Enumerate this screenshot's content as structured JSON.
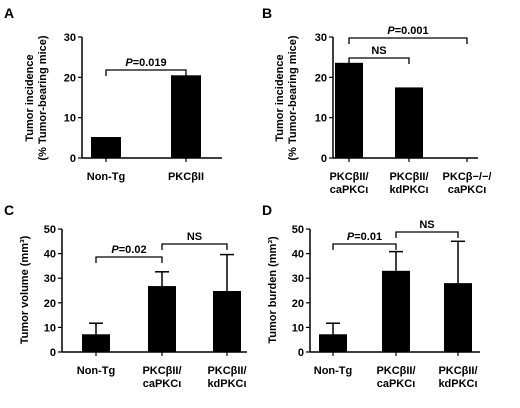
{
  "chart_data": [
    {
      "type": "bar",
      "panel": "A",
      "ylabel": [
        "Tumor incidence",
        "(% Tumor-bearing mice)"
      ],
      "ylim": [
        0,
        30
      ],
      "yticks": [
        0,
        10,
        20,
        30
      ],
      "categories": [
        [
          "Non-Tg"
        ],
        [
          "PKCβII"
        ]
      ],
      "values": [
        5.2,
        20.5
      ],
      "annotations": [
        {
          "text": "P=0.019",
          "from": 0,
          "to": 1
        }
      ]
    },
    {
      "type": "bar",
      "panel": "B",
      "ylabel": [
        "Tumor incidence",
        "(% Tumor-bearing mice)"
      ],
      "ylim": [
        0,
        30
      ],
      "yticks": [
        0,
        10,
        20,
        30
      ],
      "categories": [
        [
          "PKCβII/",
          "caPKCι"
        ],
        [
          "PKCβII/",
          "kdPKCι"
        ],
        [
          "PKCβ−/−/",
          "caPKCι"
        ]
      ],
      "values": [
        23.6,
        17.5,
        0
      ],
      "annotations": [
        {
          "text": "P=0.001",
          "from": 0,
          "to": 2
        },
        {
          "text": "NS",
          "from": 0,
          "to": 1
        }
      ]
    },
    {
      "type": "bar",
      "panel": "C",
      "ylabel": [
        "Tumor volume (mm³)"
      ],
      "ylim": [
        0,
        50
      ],
      "yticks": [
        0,
        10,
        20,
        30,
        40,
        50
      ],
      "categories": [
        [
          "Non-Tg"
        ],
        [
          "PKCβII/",
          "caPKCι"
        ],
        [
          "PKCβII/",
          "kdPKCι"
        ]
      ],
      "values": [
        7.2,
        26.8,
        24.8
      ],
      "errors": [
        4.5,
        5.8,
        14.8
      ],
      "annotations": [
        {
          "text": "P=0.02",
          "from": 0,
          "to": 1
        },
        {
          "text": "NS",
          "from": 1,
          "to": 2
        }
      ]
    },
    {
      "type": "bar",
      "panel": "D",
      "ylabel": [
        "Tumor burden (mm³)"
      ],
      "ylim": [
        0,
        50
      ],
      "yticks": [
        0,
        10,
        20,
        30,
        40,
        50
      ],
      "categories": [
        [
          "Non-Tg"
        ],
        [
          "PKCβII/",
          "caPKCι"
        ],
        [
          "PKCβII/",
          "kdPKCι"
        ]
      ],
      "values": [
        7.2,
        33.0,
        28.0
      ],
      "errors": [
        4.5,
        7.8,
        17.0
      ],
      "annotations": [
        {
          "text": "P=0.01",
          "from": 0,
          "to": 1
        },
        {
          "text": "NS",
          "from": 1,
          "to": 2
        }
      ]
    }
  ]
}
